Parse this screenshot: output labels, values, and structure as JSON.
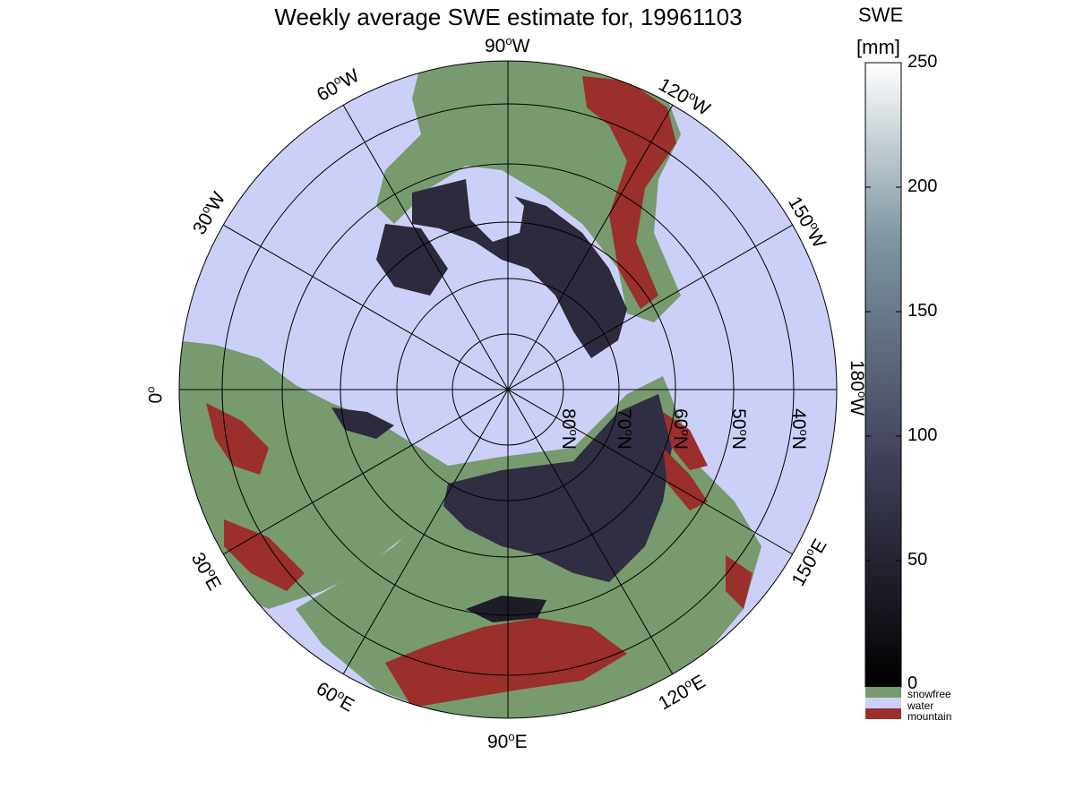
{
  "map": {
    "title": "Weekly average SWE estimate for, 19961103",
    "projection": "north polar stereographic",
    "longitude_labels": [
      {
        "deg": "90",
        "dir": "W"
      },
      {
        "deg": "60",
        "dir": "W"
      },
      {
        "deg": "120",
        "dir": "W"
      },
      {
        "deg": "30",
        "dir": "W"
      },
      {
        "deg": "150",
        "dir": "W"
      },
      {
        "deg": "0",
        "dir": ""
      },
      {
        "deg": "180",
        "dir": "W"
      },
      {
        "deg": "30",
        "dir": "E"
      },
      {
        "deg": "150",
        "dir": "E"
      },
      {
        "deg": "60",
        "dir": "E"
      },
      {
        "deg": "120",
        "dir": "E"
      },
      {
        "deg": "90",
        "dir": "E"
      }
    ],
    "latitude_labels": [
      {
        "deg": "80",
        "dir": "N"
      },
      {
        "deg": "70",
        "dir": "N"
      },
      {
        "deg": "60",
        "dir": "N"
      },
      {
        "deg": "50",
        "dir": "N"
      },
      {
        "deg": "40",
        "dir": "N"
      }
    ]
  },
  "colorbar": {
    "title": "SWE",
    "units": "[mm]",
    "ticks": [
      "250",
      "200",
      "150",
      "100",
      "50",
      "0"
    ],
    "range": [
      0,
      250
    ],
    "colormap": "bone",
    "legend": [
      {
        "label": "snowfree",
        "color": "#779a6e"
      },
      {
        "label": "water",
        "color": "#cccff8"
      },
      {
        "label": "mountain",
        "color": "#9a2f2c"
      }
    ]
  },
  "colors": {
    "water": "#cccff8",
    "snowfree": "#779a6e",
    "mountain": "#9a2f2c",
    "snow_low": "#232030",
    "snow_mid": "#4a4a62"
  }
}
